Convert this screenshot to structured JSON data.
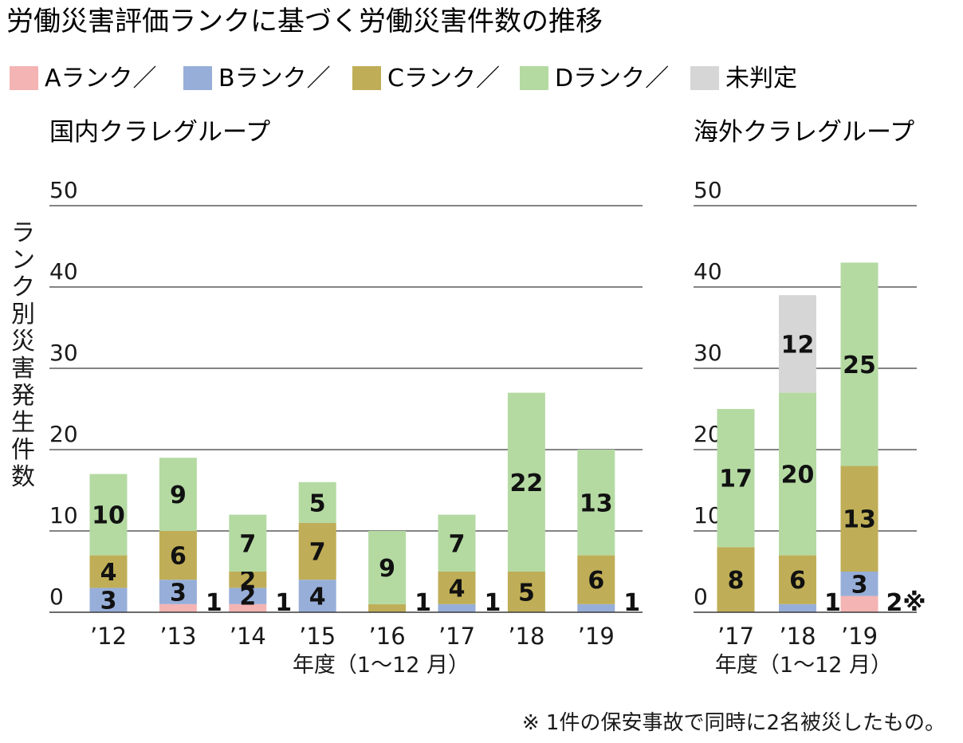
{
  "title": "労働災害評価ランクに基づく労働災害件数の推移",
  "legend": [
    {
      "key": "A",
      "label": "Aランク／",
      "color": "#f4b4b4"
    },
    {
      "key": "B",
      "label": "Bランク／",
      "color": "#97aed9"
    },
    {
      "key": "C",
      "label": "Cランク／",
      "color": "#bfae57"
    },
    {
      "key": "D",
      "label": "Dランク／",
      "color": "#b4daa2"
    },
    {
      "key": "U",
      "label": "未判定",
      "color": "#d6d6d6"
    }
  ],
  "ylabel": "ランク別災害発生件数",
  "note": "※ 1件の保安事故で同時に2名被災したもの。",
  "chart_data": [
    {
      "type": "bar",
      "stacked": true,
      "title": "国内クラレグループ",
      "xlabel": "年度（1〜12 月）",
      "ylim": [
        0,
        50
      ],
      "yticks": [
        "0",
        "10",
        "20",
        "30",
        "40",
        "50"
      ],
      "categories": [
        "’12",
        "’13",
        "’14",
        "’15",
        "’16",
        "’17",
        "’18",
        "’19"
      ],
      "series": [
        {
          "key": "A",
          "values": [
            0,
            1,
            1,
            0,
            0,
            0,
            0,
            0
          ],
          "labels": [
            "",
            "",
            "",
            "",
            "",
            "",
            "",
            ""
          ]
        },
        {
          "key": "B",
          "values": [
            3,
            3,
            2,
            4,
            0,
            1,
            0,
            1
          ],
          "labels": [
            "3",
            "3",
            "2",
            "4",
            "",
            "",
            "",
            ""
          ]
        },
        {
          "key": "C",
          "values": [
            4,
            6,
            2,
            7,
            1,
            4,
            5,
            6
          ],
          "labels": [
            "4",
            "6",
            "2",
            "7",
            "",
            "4",
            "5",
            "6"
          ]
        },
        {
          "key": "D",
          "values": [
            10,
            9,
            7,
            5,
            9,
            7,
            22,
            13
          ],
          "labels": [
            "10",
            "9",
            "7",
            "5",
            "9",
            "7",
            "22",
            "13"
          ]
        }
      ],
      "side_labels": [
        "",
        "1",
        "1",
        "",
        "1",
        "1",
        "",
        "1"
      ]
    },
    {
      "type": "bar",
      "stacked": true,
      "title": "海外クラレグループ",
      "xlabel": "年度（1〜12 月）",
      "ylim": [
        0,
        50
      ],
      "yticks": [
        "0",
        "10",
        "20",
        "30",
        "40",
        "50"
      ],
      "categories": [
        "’17",
        "’18",
        "’19"
      ],
      "series": [
        {
          "key": "A",
          "values": [
            0,
            0,
            2
          ],
          "labels": [
            "",
            "",
            ""
          ]
        },
        {
          "key": "B",
          "values": [
            0,
            1,
            3
          ],
          "labels": [
            "",
            "",
            "3"
          ]
        },
        {
          "key": "C",
          "values": [
            8,
            6,
            13
          ],
          "labels": [
            "8",
            "6",
            "13"
          ]
        },
        {
          "key": "D",
          "values": [
            17,
            20,
            25
          ],
          "labels": [
            "17",
            "20",
            "25"
          ]
        },
        {
          "key": "U",
          "values": [
            0,
            12,
            0
          ],
          "labels": [
            "",
            "12",
            ""
          ]
        }
      ],
      "side_labels": [
        "",
        "1",
        "2※"
      ]
    }
  ]
}
